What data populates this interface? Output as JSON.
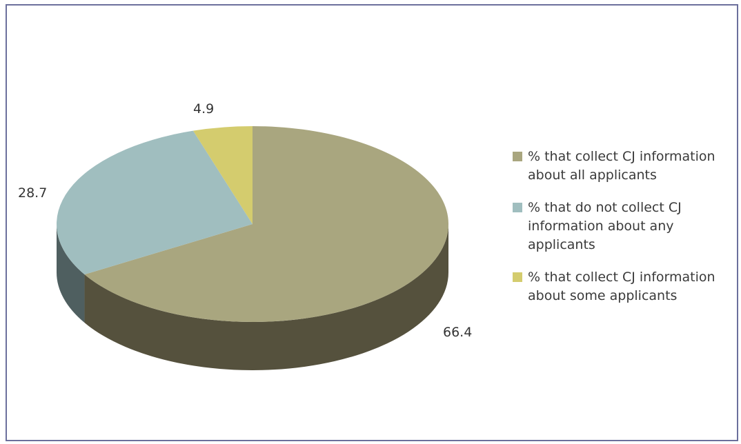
{
  "chart_data": {
    "type": "pie",
    "style": "3d",
    "slices": [
      {
        "label": "% that collect CJ information about all applicants",
        "value": 66.4,
        "color": "#a9a67f",
        "side_color": "#55513d"
      },
      {
        "label": "% that do not collect CJ information about any applicants",
        "value": 28.7,
        "color": "#a0bebf",
        "side_color": "#4f5f60"
      },
      {
        "label": "% that collect CJ information about some applicants",
        "value": 4.9,
        "color": "#d4cc6e",
        "side_color": "#6a6637"
      }
    ],
    "data_labels": [
      "66.4",
      "28.7",
      "4.9"
    ],
    "legend_position": "right"
  },
  "colors": {
    "frame_border": "#6b6f9c"
  }
}
